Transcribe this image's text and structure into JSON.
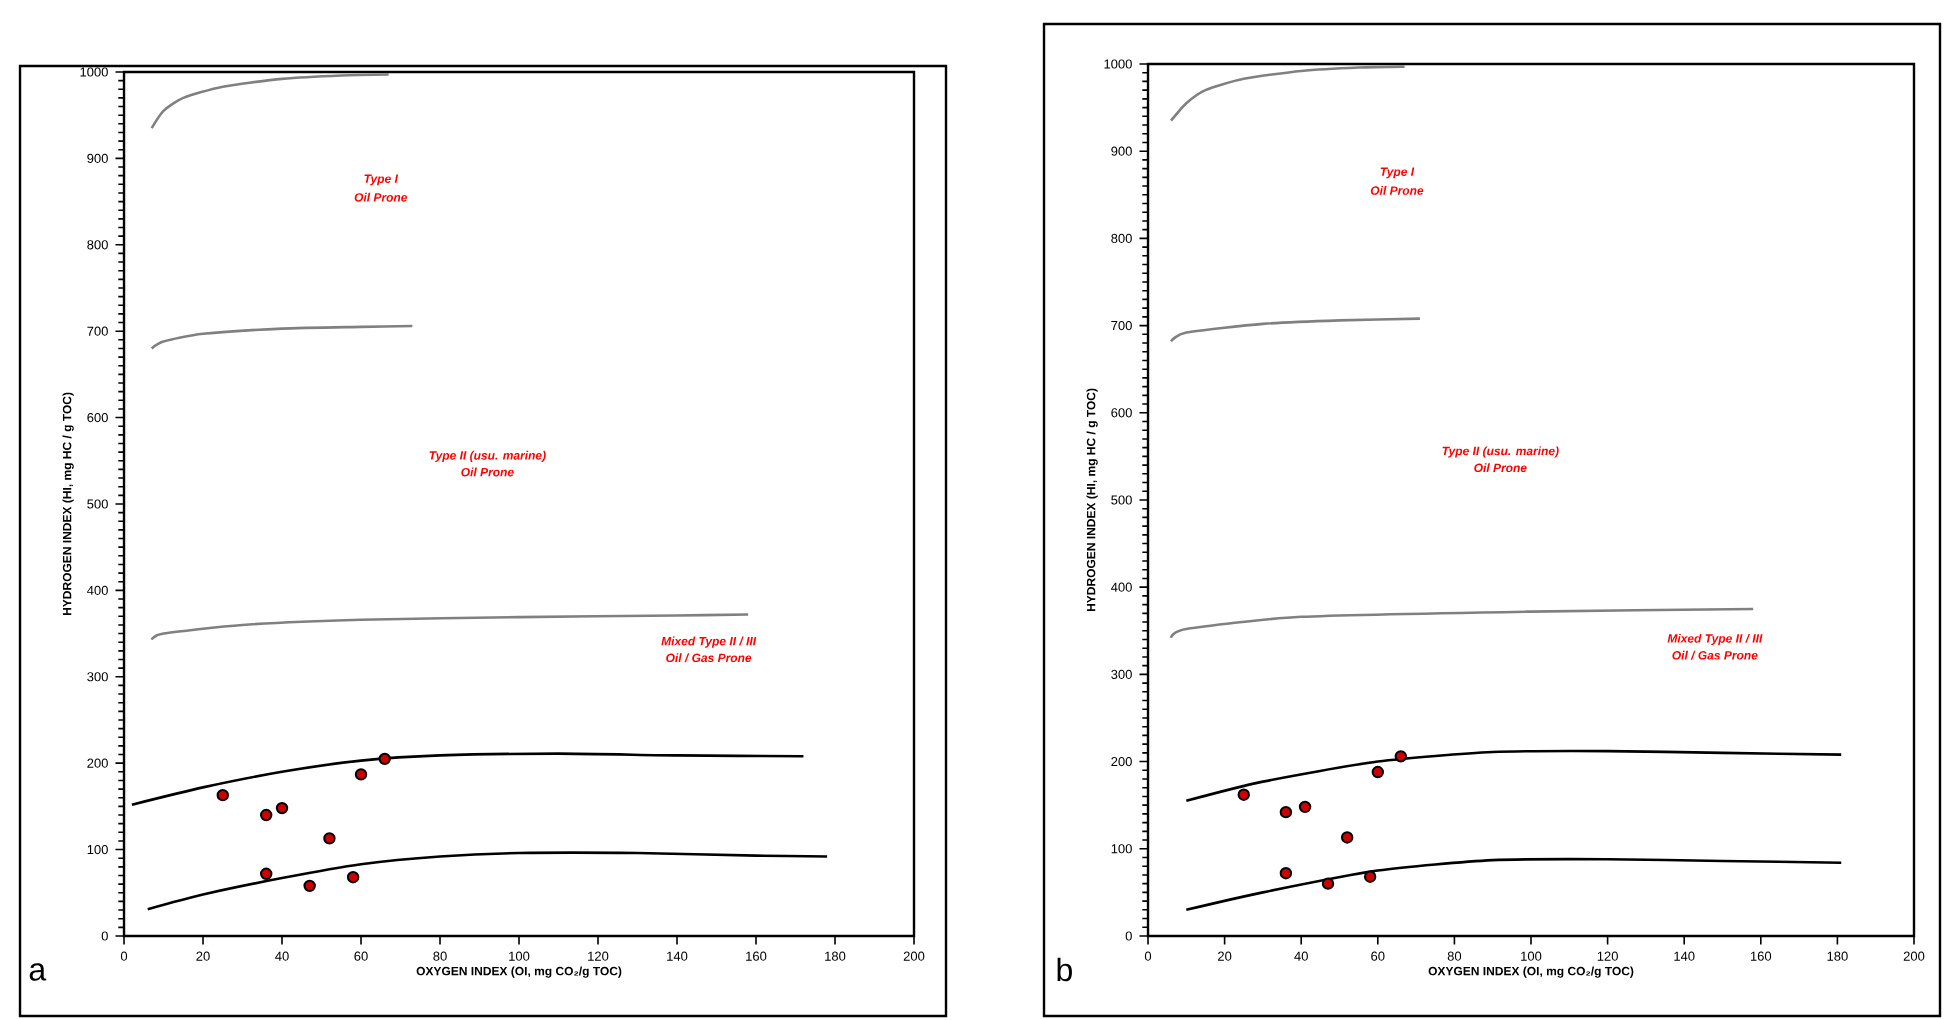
{
  "chart_data": [
    {
      "type": "scatter",
      "xlabel": "OXYGEN INDEX (OI, mg CO₂/g TOC)",
      "ylabel": "HYDROGEN INDEX (HI, mg HC / g TOC)",
      "xlim": [
        0,
        200
      ],
      "ylim": [
        0,
        1000
      ],
      "xticks": [
        0,
        20,
        40,
        60,
        80,
        100,
        120,
        140,
        160,
        180,
        200
      ],
      "yticks": [
        0,
        100,
        200,
        300,
        400,
        500,
        600,
        700,
        800,
        900,
        1000
      ],
      "grid": false,
      "annotations": [
        "Type I",
        "Oil Prone",
        "Type II (usu. marine)",
        "Oil Prone",
        "Mixed Type II / III",
        "Oil / Gas Prone",
        "a"
      ],
      "series": [
        {
          "type": "line",
          "marker": "none",
          "color": "#808080",
          "x": [
            7,
            10,
            15,
            25,
            40,
            55,
            67
          ],
          "values": [
            935,
            955,
            970,
            983,
            992,
            996,
            997
          ]
        },
        {
          "type": "line",
          "marker": "none",
          "color": "#808080",
          "x": [
            7,
            10,
            20,
            40,
            60,
            73
          ],
          "values": [
            680,
            688,
            697,
            703,
            705,
            706
          ]
        },
        {
          "type": "line",
          "marker": "none",
          "color": "#808080",
          "x": [
            7,
            10,
            30,
            60,
            100,
            140,
            158
          ],
          "values": [
            343,
            350,
            360,
            366,
            369,
            371,
            372
          ]
        },
        {
          "type": "line",
          "marker": "none",
          "color": "#000000",
          "x": [
            2,
            20,
            40,
            60,
            80,
            110,
            140,
            172
          ],
          "values": [
            152,
            172,
            190,
            203,
            209,
            211,
            209,
            208
          ]
        },
        {
          "type": "line",
          "marker": "none",
          "color": "#000000",
          "x": [
            6,
            20,
            40,
            60,
            80,
            100,
            130,
            160,
            178
          ],
          "values": [
            31,
            48,
            67,
            83,
            92,
            96,
            96,
            93,
            92
          ]
        },
        {
          "type": "scatter",
          "marker": "circle",
          "color": "#cc0000",
          "x": [
            25,
            36,
            40,
            60,
            66,
            52,
            36,
            47,
            58
          ],
          "values": [
            163,
            140,
            148,
            187,
            205,
            113,
            72,
            58,
            68
          ]
        }
      ]
    },
    {
      "type": "scatter",
      "xlabel": "OXYGEN INDEX (OI, mg CO₂/g TOC)",
      "ylabel": "HYDROGEN INDEX (HI, mg HC / g TOC)",
      "xlim": [
        0,
        200
      ],
      "ylim": [
        0,
        1000
      ],
      "xticks": [
        0,
        20,
        40,
        60,
        80,
        100,
        120,
        140,
        160,
        180,
        200
      ],
      "yticks": [
        0,
        100,
        200,
        300,
        400,
        500,
        600,
        700,
        800,
        900,
        1000
      ],
      "grid": false,
      "annotations": [
        "Type I",
        "Oil Prone",
        "Type II (usu. marine)",
        "Oil Prone",
        "Mixed Type II / III",
        "Oil / Gas Prone",
        "b"
      ],
      "series": [
        {
          "type": "line",
          "marker": "none",
          "color": "#808080",
          "x": [
            6,
            10,
            15,
            25,
            40,
            55,
            67
          ],
          "values": [
            935,
            955,
            970,
            983,
            992,
            996,
            997
          ]
        },
        {
          "type": "line",
          "marker": "none",
          "color": "#808080",
          "x": [
            6,
            10,
            30,
            50,
            71
          ],
          "values": [
            682,
            692,
            702,
            706,
            708
          ]
        },
        {
          "type": "line",
          "marker": "none",
          "color": "#808080",
          "x": [
            6,
            10,
            40,
            100,
            158
          ],
          "values": [
            342,
            352,
            366,
            372,
            375
          ]
        },
        {
          "type": "line",
          "marker": "none",
          "color": "#000000",
          "x": [
            10,
            30,
            60,
            90,
            120,
            150,
            181
          ],
          "values": [
            155,
            177,
            200,
            211,
            212,
            210,
            208
          ]
        },
        {
          "type": "line",
          "marker": "none",
          "color": "#000000",
          "x": [
            10,
            30,
            60,
            90,
            120,
            150,
            181
          ],
          "values": [
            30,
            50,
            75,
            87,
            88,
            86,
            84
          ]
        },
        {
          "type": "scatter",
          "marker": "circle",
          "color": "#cc0000",
          "x": [
            25,
            36,
            41,
            60,
            66,
            52,
            36,
            47,
            58
          ],
          "values": [
            162,
            142,
            148,
            188,
            206,
            113,
            72,
            60,
            68
          ]
        }
      ]
    }
  ]
}
